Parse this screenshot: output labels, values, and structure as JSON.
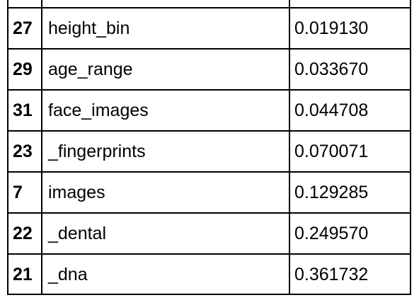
{
  "table": {
    "rows": [
      {
        "index": "27",
        "feature": "height_bin",
        "value": "0.019130"
      },
      {
        "index": "29",
        "feature": "age_range",
        "value": "0.033670"
      },
      {
        "index": "31",
        "feature": "face_images",
        "value": "0.044708"
      },
      {
        "index": "23",
        "feature": "_fingerprints",
        "value": "0.070071"
      },
      {
        "index": "7",
        "feature": "images",
        "value": "0.129285"
      },
      {
        "index": "22",
        "feature": "_dental",
        "value": "0.249570"
      },
      {
        "index": "21",
        "feature": "_dna",
        "value": "0.361732"
      }
    ]
  }
}
